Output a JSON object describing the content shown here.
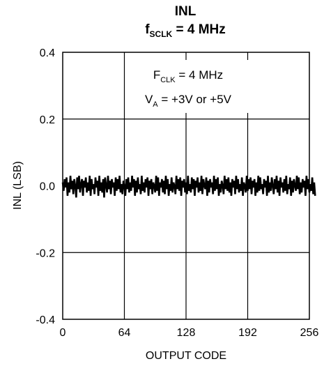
{
  "chart_data": {
    "type": "line",
    "title_main": "INL",
    "title_sub_prefix": "f",
    "title_sub_subscript": "SCLK",
    "title_sub_suffix": " = 4 MHz",
    "xlabel": "OUTPUT CODE",
    "ylabel": "INL (LSB)",
    "xlim": [
      0,
      256
    ],
    "ylim": [
      -0.4,
      0.4
    ],
    "x_ticks": [
      0,
      64,
      128,
      192,
      256
    ],
    "x_tick_labels": [
      "0",
      "64",
      "128",
      "192",
      "256"
    ],
    "y_ticks": [
      0.4,
      0.2,
      0.0,
      -0.2,
      -0.4
    ],
    "y_tick_labels": [
      "0.4",
      "0.2",
      "0.0",
      "-0.2",
      "-0.4"
    ],
    "grid": true,
    "annotations": [
      {
        "prefix": "F",
        "subscript": "CLK",
        "suffix": " = 4 MHz"
      },
      {
        "prefix": "V",
        "subscript": "A",
        "suffix": " = +3V or +5V"
      }
    ],
    "series": [
      {
        "x_start": 0,
        "x_step": 1,
        "values": [
          0.01,
          -0.015,
          0.02,
          -0.005,
          0.025,
          -0.03,
          0.01,
          -0.02,
          0.03,
          -0.01,
          0.015,
          -0.025,
          0.02,
          0.0,
          -0.035,
          0.025,
          -0.01,
          0.03,
          -0.02,
          0.005,
          0.02,
          -0.03,
          0.015,
          -0.005,
          0.025,
          -0.02,
          0.01,
          -0.015,
          0.03,
          -0.03,
          0.02,
          -0.01,
          0.005,
          -0.025,
          0.025,
          -0.005,
          0.015,
          -0.03,
          0.03,
          -0.015,
          0.01,
          -0.02,
          0.02,
          -0.035,
          0.025,
          0.0,
          -0.02,
          0.03,
          -0.01,
          0.015,
          -0.025,
          0.02,
          -0.005,
          0.01,
          -0.03,
          0.025,
          -0.015,
          0.02,
          -0.01,
          0.03,
          -0.02,
          0.005,
          -0.025,
          0.015,
          0.0,
          -0.03,
          0.02,
          -0.01,
          0.025,
          -0.02,
          0.01,
          -0.015,
          0.03,
          -0.005,
          0.02,
          -0.03,
          0.015,
          -0.02,
          0.025,
          -0.01,
          0.005,
          -0.025,
          0.03,
          -0.015,
          0.01,
          -0.02,
          0.02,
          -0.005,
          0.025,
          -0.03,
          0.015,
          -0.01,
          0.02,
          -0.025,
          0.01,
          0.0,
          -0.02,
          0.03,
          -0.015,
          0.025,
          -0.03,
          0.01,
          -0.005,
          0.02,
          -0.02,
          0.015,
          -0.025,
          0.03,
          -0.01,
          0.02,
          -0.03,
          0.005,
          -0.015,
          0.025,
          -0.02,
          0.01,
          0.0,
          -0.025,
          0.03,
          -0.01,
          0.02,
          -0.015,
          0.025,
          -0.03,
          0.015,
          -0.005,
          0.02,
          -0.02,
          0.01,
          -0.025,
          0.03,
          -0.015,
          0.005,
          -0.02,
          0.025,
          -0.01,
          0.02,
          -0.03,
          0.015,
          -0.005,
          0.025,
          -0.02,
          0.01,
          -0.015,
          0.03,
          -0.025,
          0.02,
          0.0,
          -0.01,
          0.025,
          -0.03,
          0.015,
          -0.02,
          0.02,
          -0.005,
          0.01,
          -0.025,
          0.03,
          -0.015,
          0.02,
          -0.01,
          0.025,
          -0.03,
          0.005,
          -0.02,
          0.015,
          0.0,
          -0.025,
          0.03,
          -0.01,
          0.02,
          -0.015,
          0.025,
          -0.02,
          0.01,
          -0.03,
          0.02,
          -0.005,
          0.015,
          -0.025,
          0.03,
          -0.01,
          0.02,
          -0.02,
          0.005,
          -0.015,
          0.025,
          -0.03,
          0.01,
          0.0,
          -0.02,
          0.03,
          -0.015,
          0.02,
          -0.01,
          0.025,
          -0.025,
          0.015,
          -0.005,
          0.02,
          -0.03,
          0.01,
          -0.02,
          0.03,
          -0.015,
          0.025,
          -0.01,
          0.005,
          -0.025,
          0.02,
          -0.005,
          0.015,
          -0.03,
          0.03,
          -0.02,
          0.01,
          -0.015,
          0.025,
          0.0,
          -0.025,
          0.02,
          -0.01,
          0.03,
          -0.02,
          0.015,
          -0.03,
          0.025,
          -0.005,
          0.01,
          -0.02,
          0.02,
          -0.015,
          0.03,
          -0.025,
          0.005,
          -0.01,
          0.025,
          -0.03,
          0.015,
          -0.02,
          0.02,
          0.0,
          -0.015,
          0.03,
          -0.01,
          0.025,
          -0.025,
          0.01,
          -0.02,
          0.02,
          -0.005,
          0.015,
          -0.03,
          0.03,
          -0.01,
          0.02,
          -0.02,
          0.005,
          -0.015,
          0.025,
          -0.025,
          0.01,
          -0.03
        ]
      }
    ]
  }
}
